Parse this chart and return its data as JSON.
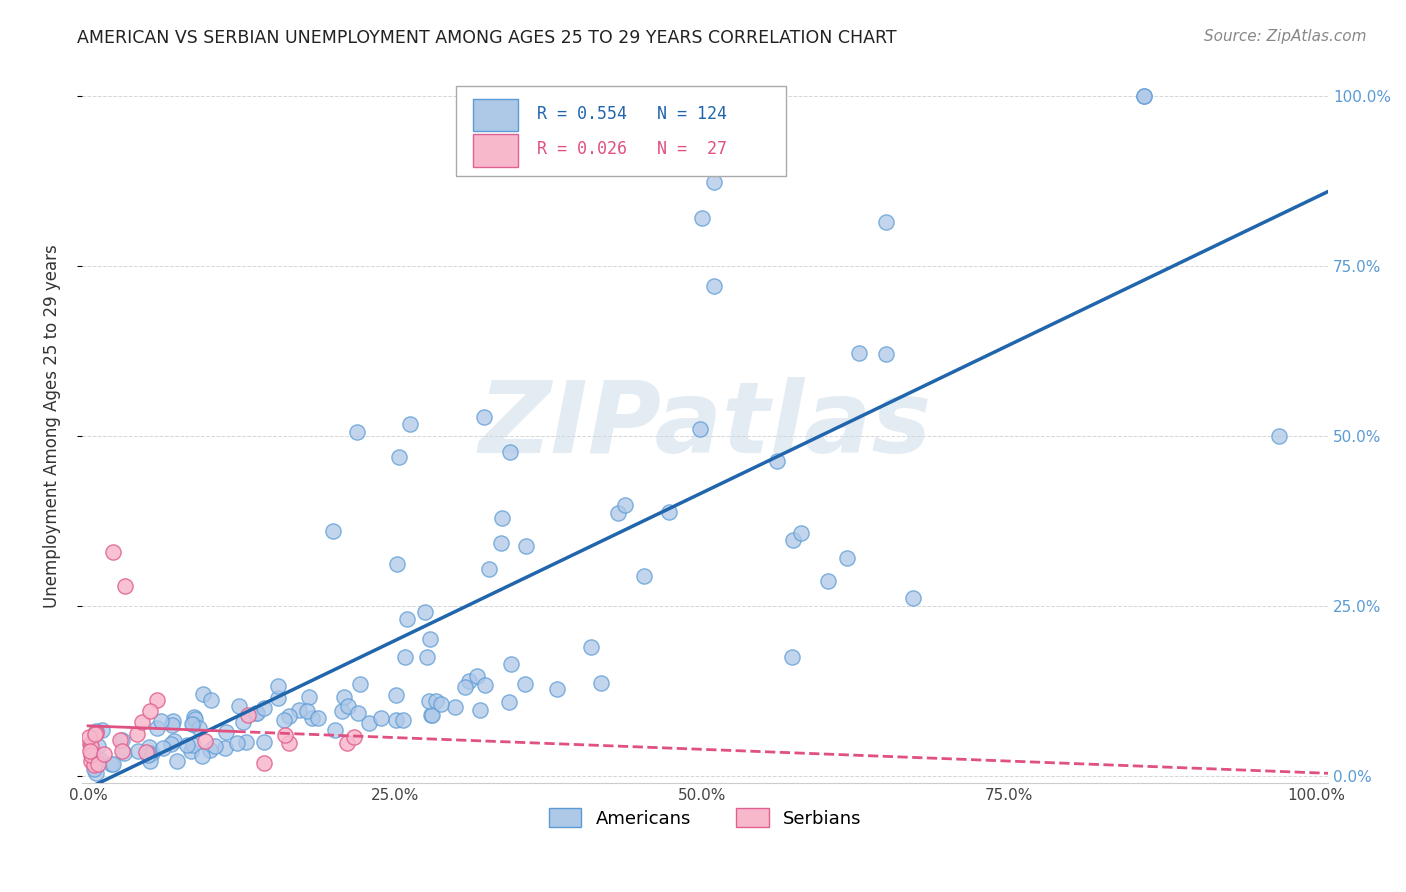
{
  "title": "AMERICAN VS SERBIAN UNEMPLOYMENT AMONG AGES 25 TO 29 YEARS CORRELATION CHART",
  "source": "Source: ZipAtlas.com",
  "ylabel": "Unemployment Among Ages 25 to 29 years",
  "american_color": "#aec8e8",
  "american_edge_color": "#5b9bd5",
  "american_line_color": "#2166ac",
  "serbian_color": "#f7b8cc",
  "serbian_edge_color": "#e06090",
  "serbian_line_color": "#e05080",
  "right_tick_color": "#5b9bd5",
  "watermark_text": "ZIPatlas",
  "legend_R_am": "R = 0.554",
  "legend_N_am": "N = 124",
  "legend_R_se": "R = 0.026",
  "legend_N_se": "N =  27"
}
